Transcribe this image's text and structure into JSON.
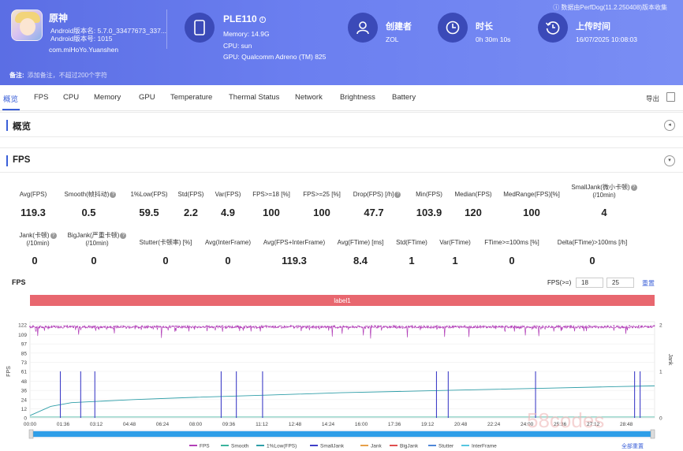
{
  "app": {
    "name": "原神",
    "android_version": "Android版本名: 5.7.0_33477673_337...",
    "android_code": "Android版本号: 1015",
    "package": "com.miHoYo.Yuanshen"
  },
  "device": {
    "name": "PLE110",
    "memory": "Memory: 14.9G",
    "cpu": "CPU: sun",
    "gpu": "GPU: Qualcomm Adreno (TM) 825"
  },
  "creator": {
    "label": "创建者",
    "value": "ZOL"
  },
  "duration": {
    "label": "时长",
    "value": "0h 30m 10s"
  },
  "upload": {
    "label": "上传时间",
    "value": "16/07/2025 10:08:03"
  },
  "source_note": "数据由PerfDog(11.2.250408)版本收集",
  "remark": {
    "label": "备注:",
    "placeholder": "添加备注，不超过200个字符"
  },
  "tabs": [
    "概览",
    "FPS",
    "CPU",
    "Memory",
    "GPU",
    "Temperature",
    "Thermal Status",
    "Network",
    "Brightness",
    "Battery"
  ],
  "export_label": "导出",
  "sections": {
    "overview": "概览",
    "fps": "FPS"
  },
  "stats_row1": [
    {
      "label": "Avg(FPS)",
      "value": "119.3"
    },
    {
      "label": "Smooth(帧抖动)",
      "value": "0.5",
      "help": true
    },
    {
      "label": "1%Low(FPS)",
      "value": "59.5"
    },
    {
      "label": "Std(FPS)",
      "value": "2.2"
    },
    {
      "label": "Var(FPS)",
      "value": "4.9"
    },
    {
      "label": "FPS>=18 [%]",
      "value": "100"
    },
    {
      "label": "FPS>=25 [%]",
      "value": "100"
    },
    {
      "label": "Drop(FPS) [/h]",
      "value": "47.7",
      "help": true
    },
    {
      "label": "Min(FPS)",
      "value": "103.9"
    },
    {
      "label": "Median(FPS)",
      "value": "120"
    },
    {
      "label": "MedRange(FPS)[%]",
      "value": "100"
    },
    {
      "label": "SmallJank(微小卡顿)",
      "label2": "(/10min)",
      "value": "4"
    }
  ],
  "stats_row2": [
    {
      "label": "Jank(卡顿)",
      "label2": "(/10min)",
      "value": "0"
    },
    {
      "label": "BigJank(严重卡顿)",
      "label2": "(/10min)",
      "value": "0"
    },
    {
      "label": "Stutter(卡顿率) [%]",
      "value": "0"
    },
    {
      "label": "Avg(InterFrame)",
      "value": "0"
    },
    {
      "label": "Avg(FPS+InterFrame)",
      "value": "119.3"
    },
    {
      "label": "Avg(FTime) [ms]",
      "value": "8.4"
    },
    {
      "label": "Std(FTime)",
      "value": "1"
    },
    {
      "label": "Var(FTime)",
      "value": "1"
    },
    {
      "label": "FTime>=100ms [%]",
      "value": "0"
    },
    {
      "label": "Delta(FTime)>100ms [/h]",
      "value": "0"
    }
  ],
  "chart_controls": {
    "title": "FPS",
    "fps_ge_label": "FPS(>=)",
    "threshold1": "18",
    "threshold2": "25",
    "reset_label": "重置",
    "reset_all_label": "全部重置"
  },
  "chart_data": {
    "type": "line",
    "title": "FPS",
    "band_label": "label1",
    "ylabel_left": "FPS",
    "ylabel_right": "Jank",
    "y_ticks_left": [
      0,
      12,
      24,
      36,
      48,
      61,
      73,
      85,
      97,
      109,
      122
    ],
    "y_ticks_right": [
      0,
      1,
      2
    ],
    "ylim_left": [
      0,
      122
    ],
    "ylim_right": [
      0,
      2
    ],
    "x_ticks": [
      "00:00",
      "01:36",
      "03:12",
      "04:48",
      "06:24",
      "08:00",
      "09:36",
      "11:12",
      "12:48",
      "14:24",
      "16:00",
      "17:36",
      "19:12",
      "20:48",
      "22:24",
      "24:00",
      "25:36",
      "27:12",
      "28:48"
    ],
    "duration_seconds": 1810,
    "series": [
      {
        "name": "FPS",
        "color": "#b23fb8",
        "mean": 119.3,
        "min": 103.9
      },
      {
        "name": "Smooth",
        "color": "#3bb39d"
      },
      {
        "name": "1%Low(FPS)",
        "color": "#2f9ea8",
        "points_sec": [
          0,
          60,
          120,
          300,
          480,
          700,
          900,
          1100,
          1300,
          1500,
          1700,
          1810
        ],
        "points_val": [
          3,
          15,
          20,
          24,
          27,
          30,
          33,
          35,
          37,
          39,
          41,
          42
        ]
      },
      {
        "name": "SmallJank",
        "color": "#3f3fc8",
        "events_sec": [
          88,
          147,
          188,
          554,
          598,
          674,
          1178,
          1212,
          1465,
          1752,
          1768
        ],
        "value": 1
      },
      {
        "name": "Jank",
        "color": "#e6a04a"
      },
      {
        "name": "BigJank",
        "color": "#e04f4f"
      },
      {
        "name": "Stutter",
        "color": "#4f87d8"
      },
      {
        "name": "InterFrame",
        "color": "#56c6e0"
      }
    ]
  },
  "colors": {
    "header": "#6b7ff0",
    "accent": "#3a5fd8",
    "band": "#e8676f"
  },
  "watermark": "58codes"
}
